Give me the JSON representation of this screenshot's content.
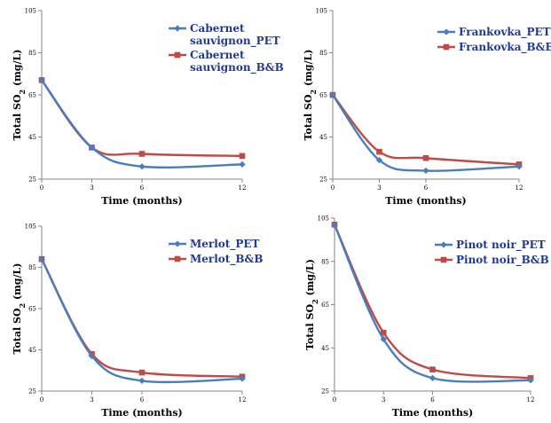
{
  "colors": {
    "pet": "#4a7ebb",
    "bb": "#be4b48",
    "axis": "#868686"
  },
  "chart_data": [
    {
      "type": "line",
      "x": [
        0,
        3,
        6,
        12
      ],
      "xlabel": "Time (months)",
      "ylabel": "Total SO2 (mg/L)",
      "ylim": [
        25,
        105
      ],
      "yticks": [
        25,
        45,
        65,
        85,
        105
      ],
      "xticks": [
        0,
        3,
        6,
        12
      ],
      "legend_position": "top-right",
      "series": [
        {
          "name": "Cabernet sauvignon_PET",
          "values": [
            72,
            40,
            31,
            32
          ]
        },
        {
          "name": "Cabernet sauvignon_B&B",
          "values": [
            72,
            40,
            37,
            36
          ]
        }
      ]
    },
    {
      "type": "line",
      "x": [
        0,
        3,
        6,
        12
      ],
      "xlabel": "Time (months)",
      "ylabel": "Total SO2 (mg/L)",
      "ylim": [
        25,
        105
      ],
      "yticks": [
        25,
        45,
        65,
        85,
        105
      ],
      "xticks": [
        0,
        3,
        6,
        12
      ],
      "legend_position": "top-right",
      "series": [
        {
          "name": "Frankovka_PET",
          "values": [
            65,
            34,
            29,
            31
          ]
        },
        {
          "name": "Frankovka_B&B",
          "values": [
            65,
            38,
            35,
            32
          ]
        }
      ]
    },
    {
      "type": "line",
      "x": [
        0,
        3,
        6,
        12
      ],
      "xlabel": "Time (months)",
      "ylabel": "Total SO2 (mg/L)",
      "ylim": [
        25,
        105
      ],
      "yticks": [
        25,
        45,
        65,
        85,
        105
      ],
      "xticks": [
        0,
        3,
        6,
        12
      ],
      "legend_position": "top-right",
      "series": [
        {
          "name": "Merlot_PET",
          "values": [
            89,
            42,
            30,
            31
          ]
        },
        {
          "name": "Merlot_B&B",
          "values": [
            89,
            43,
            34,
            32
          ]
        }
      ]
    },
    {
      "type": "line",
      "x": [
        0,
        3,
        6,
        12
      ],
      "xlabel": "Time (months)",
      "ylabel": "Total SO2 (mg/L)",
      "ylim": [
        25,
        105
      ],
      "yticks": [
        25,
        45,
        65,
        85,
        105
      ],
      "xticks": [
        0,
        3,
        6,
        12
      ],
      "legend_position": "top-right",
      "series": [
        {
          "name": "Pinot noir_PET",
          "values": [
            102,
            49,
            31,
            30
          ]
        },
        {
          "name": "Pinot noir_B&B",
          "values": [
            102,
            52,
            35,
            31
          ]
        }
      ]
    }
  ]
}
